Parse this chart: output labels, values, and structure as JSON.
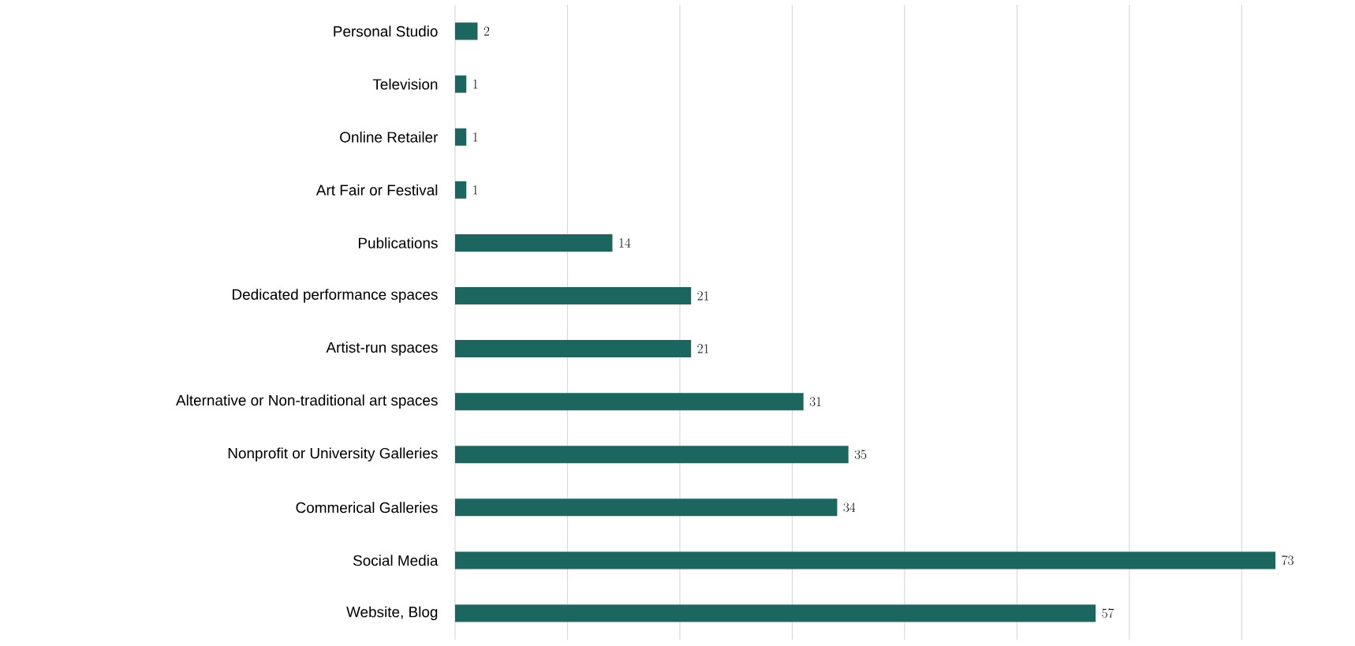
{
  "chart_data": {
    "type": "bar",
    "orientation": "horizontal",
    "categories": [
      "Personal Studio",
      "Television",
      "Online Retailer",
      "Art Fair or Festival",
      "Publications",
      "Dedicated performance spaces",
      "Artist-run spaces",
      "Alternative or Non-traditional art spaces",
      "Nonprofit or University Galleries",
      "Commerical Galleries",
      "Social Media",
      "Website, Blog"
    ],
    "values": [
      2,
      1,
      1,
      1,
      14,
      21,
      21,
      31,
      35,
      34,
      73,
      57
    ],
    "color": "#1b675f",
    "xticks": [
      {
        "value": 0,
        "label": null
      },
      {
        "value": 10,
        "label": null
      },
      {
        "value": 20,
        "label": null
      },
      {
        "value": 30,
        "label": null
      },
      {
        "value": 40,
        "label": null
      },
      {
        "value": 50,
        "label": null
      },
      {
        "value": 60,
        "label": null
      },
      {
        "value": 70,
        "label": null
      }
    ],
    "grid": "x",
    "tick_labels": "y",
    "data_labels": true
  }
}
